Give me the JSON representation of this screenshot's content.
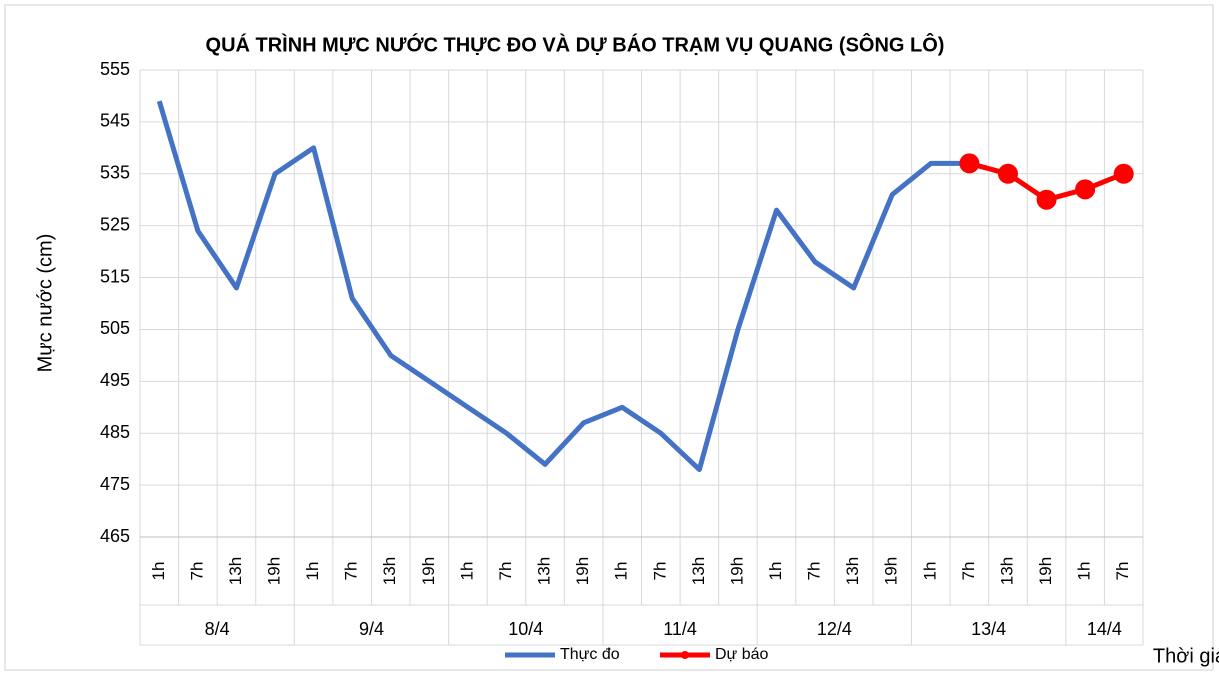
{
  "chart_data": {
    "type": "line",
    "title": "QUÁ TRÌNH MỰC NƯỚC THỰC ĐO VÀ DỰ BÁO TRẠM VỤ QUANG (SÔNG LÔ)",
    "y_label": "Mực nước (cm)",
    "x_label": "Thời gian",
    "groups": [
      {
        "label": "8/4",
        "categories": [
          "1h",
          "7h",
          "13h",
          "19h"
        ]
      },
      {
        "label": "9/4",
        "categories": [
          "1h",
          "7h",
          "13h",
          "19h"
        ]
      },
      {
        "label": "10/4",
        "categories": [
          "1h",
          "7h",
          "13h",
          "19h"
        ]
      },
      {
        "label": "11/4",
        "categories": [
          "1h",
          "7h",
          "13h",
          "19h"
        ]
      },
      {
        "label": "12/4",
        "categories": [
          "1h",
          "7h",
          "13h",
          "19h"
        ]
      },
      {
        "label": "13/4",
        "categories": [
          "1h",
          "7h",
          "13h",
          "19h"
        ]
      },
      {
        "label": "14/4",
        "categories": [
          "1h",
          "7h"
        ]
      }
    ],
    "series": [
      {
        "name": "Thực đo",
        "color": "#4472c4",
        "markers": false,
        "values": [
          549,
          524,
          513,
          535,
          540,
          511,
          500,
          495,
          490,
          485,
          479,
          487,
          490,
          485,
          478,
          505,
          528,
          518,
          513,
          531,
          537,
          537,
          null,
          null,
          null,
          null
        ]
      },
      {
        "name": "Dự báo",
        "color": "#ff0000",
        "markers": true,
        "values": [
          null,
          null,
          null,
          null,
          null,
          null,
          null,
          null,
          null,
          null,
          null,
          null,
          null,
          null,
          null,
          null,
          null,
          null,
          null,
          null,
          null,
          537,
          535,
          530,
          532,
          535
        ]
      }
    ],
    "ylim": [
      465,
      555
    ],
    "yticks": [
      465,
      475,
      485,
      495,
      505,
      515,
      525,
      535,
      545,
      555
    ],
    "grid": true,
    "legend": "bottom"
  }
}
